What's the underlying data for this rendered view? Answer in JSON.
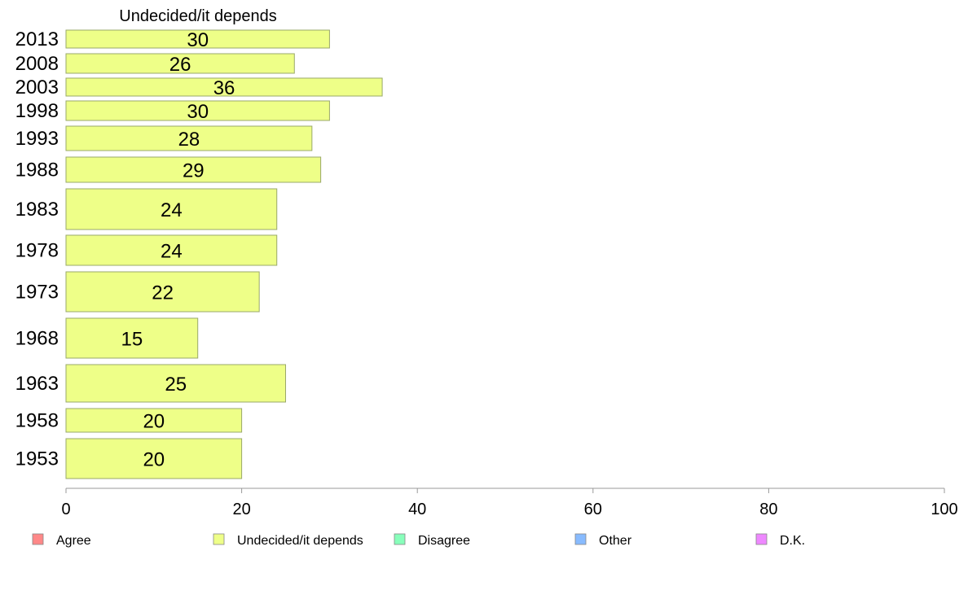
{
  "chart_data": {
    "type": "bar",
    "orientation": "horizontal",
    "title": "Undecided/it depends",
    "categories": [
      "2013",
      "2008",
      "2003",
      "1998",
      "1993",
      "1988",
      "1983",
      "1978",
      "1973",
      "1968",
      "1963",
      "1958",
      "1953"
    ],
    "values": [
      30,
      26,
      36,
      30,
      28,
      29,
      24,
      24,
      22,
      15,
      25,
      20,
      20
    ],
    "value_labels": [
      "30",
      "26",
      "36",
      "30",
      "28",
      "29",
      "24",
      "24",
      "22",
      "15",
      "25",
      "20",
      "20"
    ],
    "xlim": [
      0,
      100
    ],
    "xticks": [
      "0",
      "20",
      "40",
      "60",
      "80",
      "100"
    ],
    "bar_color": "#eeff88",
    "grid": false,
    "legend_position": "bottom",
    "legend": [
      {
        "label": "Agree",
        "color": "#ff8888"
      },
      {
        "label": "Undecided/it depends",
        "color": "#eeff88"
      },
      {
        "label": "Disagree",
        "color": "#88ffbb"
      },
      {
        "label": "Other",
        "color": "#88bbff"
      },
      {
        "label": "D.K.",
        "color": "#ee88ff"
      }
    ]
  }
}
